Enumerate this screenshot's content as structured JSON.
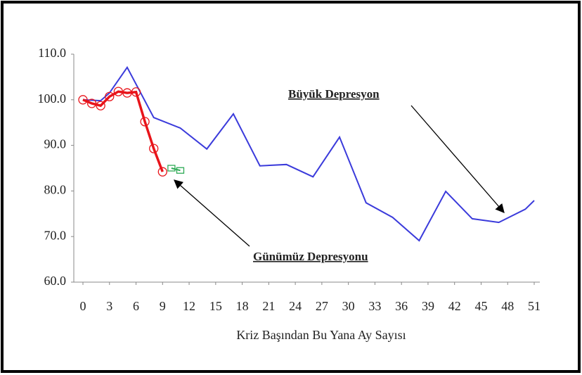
{
  "chart_data": {
    "type": "line",
    "x_label": "Kriz Başından Bu Yana Ay Sayısı",
    "xlim": [
      0,
      51
    ],
    "xticks": [
      0,
      3,
      6,
      9,
      12,
      15,
      18,
      21,
      24,
      27,
      30,
      33,
      36,
      39,
      42,
      45,
      48,
      51
    ],
    "ylim": [
      60,
      110
    ],
    "yticks": [
      {
        "value": 60,
        "label": "60.0"
      },
      {
        "value": 70,
        "label": "70.0"
      },
      {
        "value": 80,
        "label": "80.0"
      },
      {
        "value": 90,
        "label": "90.0"
      },
      {
        "value": 100,
        "label": "100.0"
      },
      {
        "value": 110,
        "label": "110.0"
      }
    ],
    "series": [
      {
        "name": "Büyük Depresyon",
        "color": "#3b3bdb",
        "marker": "none",
        "x": [
          0,
          2,
          3,
          5,
          8,
          11,
          14,
          17,
          20,
          23,
          26,
          29,
          32,
          35,
          38,
          41,
          44,
          47,
          50,
          51
        ],
        "values": [
          100.0,
          99.8,
          101.5,
          107.1,
          96.1,
          93.8,
          89.2,
          96.9,
          85.5,
          85.8,
          83.1,
          91.8,
          77.4,
          74.2,
          69.1,
          79.9,
          73.9,
          73.1,
          76.0,
          77.9
        ]
      },
      {
        "name": "Günümüz Depresyonu",
        "color": "#e8141a",
        "marker": "circle",
        "x": [
          0,
          1,
          2,
          3,
          4,
          5,
          6,
          7,
          8,
          9
        ],
        "values": [
          100.0,
          99.2,
          98.7,
          100.7,
          101.8,
          101.5,
          101.7,
          95.2,
          89.3,
          84.2
        ]
      },
      {
        "color": "#2eaa55",
        "marker": "square",
        "x": [
          10,
          11
        ],
        "values": [
          85.0,
          84.5
        ]
      }
    ]
  }
}
